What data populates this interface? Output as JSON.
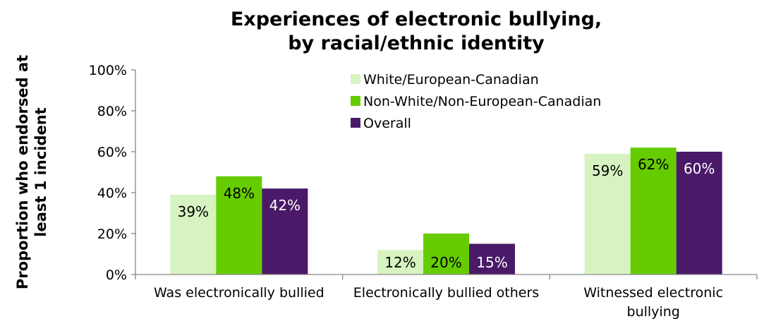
{
  "chart_data": {
    "type": "bar",
    "title": [
      "Experiences of electronic bullying,",
      "by racial/ethnic identity"
    ],
    "ylabel": [
      "Proportion who endorsed at",
      "least 1 incident"
    ],
    "xlabel": "",
    "ylim": [
      0,
      100
    ],
    "yticks": [
      "0%",
      "20%",
      "40%",
      "60%",
      "80%",
      "100%"
    ],
    "categories": [
      [
        "Was electronically bullied"
      ],
      [
        "Electronically bullied others"
      ],
      [
        "Witnessed electronic",
        "bullying"
      ]
    ],
    "series": [
      {
        "name": "White/European-Canadian",
        "color": "#d7f3c1",
        "label_color": "#000000",
        "values": [
          39,
          12,
          59
        ],
        "labels": [
          "39%",
          "12%",
          "59%"
        ]
      },
      {
        "name": "Non-White/Non-European-Canadian",
        "color": "#66cc00",
        "label_color": "#000000",
        "values": [
          48,
          20,
          62
        ],
        "labels": [
          "48%",
          "20%",
          "62%"
        ]
      },
      {
        "name": "Overall",
        "color": "#4a1967",
        "label_color": "#ffffff",
        "values": [
          42,
          15,
          60
        ],
        "labels": [
          "42%",
          "15%",
          "60%"
        ]
      }
    ],
    "legend_position": "top-center",
    "grid": false
  }
}
